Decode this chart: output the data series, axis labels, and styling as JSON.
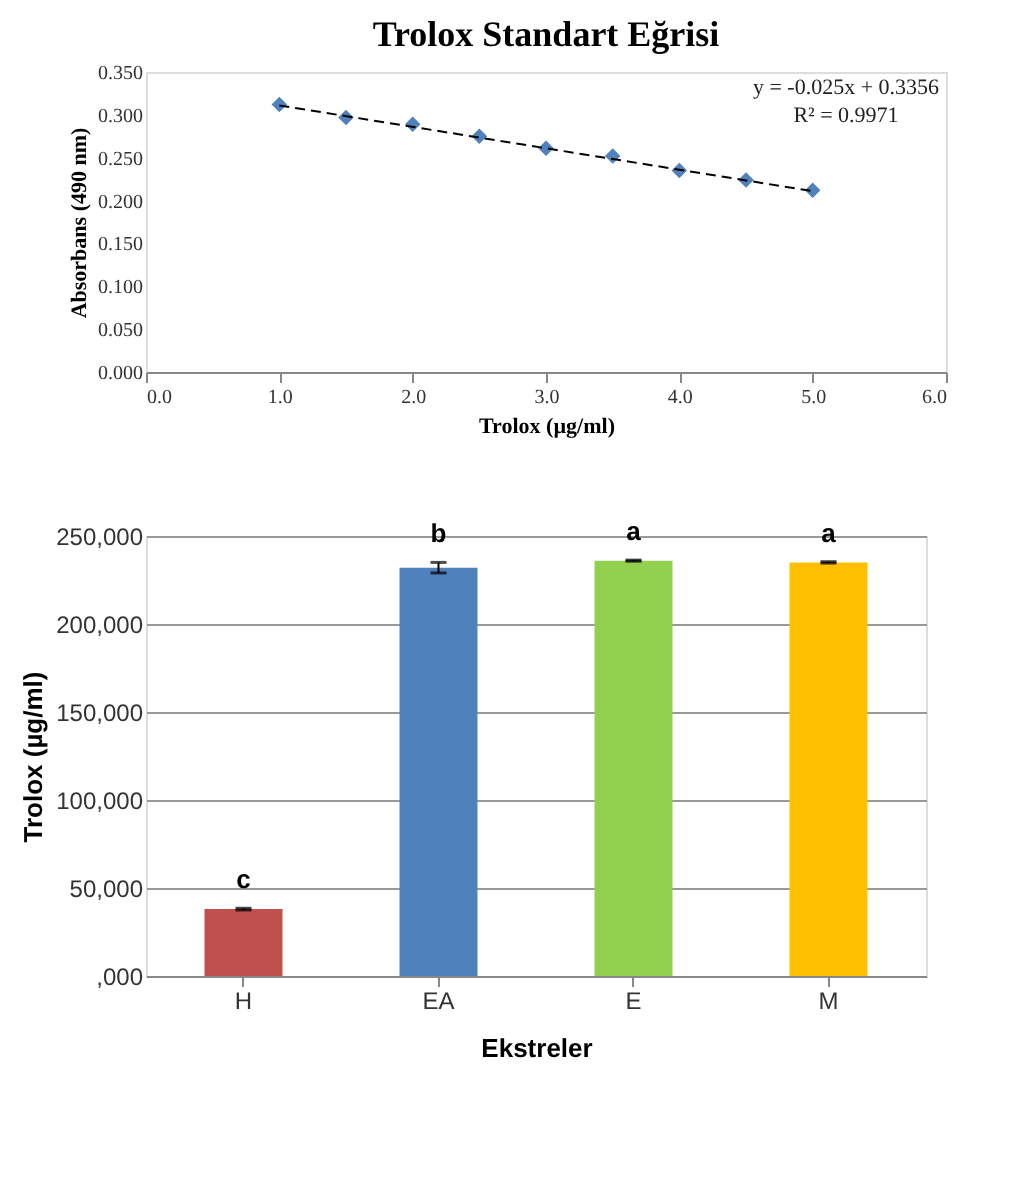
{
  "chart_data": [
    {
      "type": "scatter",
      "title": "Trolox Standart Eğrisi",
      "xlabel": "Trolox (µg/ml)",
      "ylabel": "Absorbans (490 nm)",
      "xlim": [
        0,
        6
      ],
      "xticks": [
        {
          "value": 0,
          "label": "0.0"
        },
        {
          "value": 1,
          "label": "1.0"
        },
        {
          "value": 2,
          "label": "2.0"
        },
        {
          "value": 3,
          "label": "3.0"
        },
        {
          "value": 4,
          "label": "4.0"
        },
        {
          "value": 5,
          "label": "5.0"
        },
        {
          "value": 6,
          "label": "6.0"
        }
      ],
      "ylim": [
        0,
        0.35
      ],
      "yticks": [
        {
          "value": 0,
          "label": "0.000"
        },
        {
          "value": 0.05,
          "label": "0.050"
        },
        {
          "value": 0.1,
          "label": "0.100"
        },
        {
          "value": 0.15,
          "label": "0.150"
        },
        {
          "value": 0.2,
          "label": "0.200"
        },
        {
          "value": 0.25,
          "label": "0.250"
        },
        {
          "value": 0.3,
          "label": "0.300"
        },
        {
          "value": 0.35,
          "label": "0.350"
        }
      ],
      "grid": false,
      "annotations": [
        "y = -0.025x + 0.3356",
        "R² = 0.9971"
      ],
      "series": [
        {
          "type": "scatter",
          "marker": "diamond",
          "color": "#4f81bd",
          "x": [
            1,
            1.5,
            2,
            2.5,
            3,
            3.5,
            4,
            4.5,
            5
          ],
          "values": [
            0.312,
            0.297,
            0.289,
            0.275,
            0.261,
            0.252,
            0.235,
            0.224,
            0.212
          ]
        },
        {
          "type": "line",
          "line_style": "dashed",
          "color": "#000000",
          "x": [
            1,
            5
          ],
          "values": [
            0.311,
            0.211
          ]
        }
      ]
    },
    {
      "type": "bar",
      "xlabel": "Ekstreler",
      "ylabel": "Trolox (µg/ml)",
      "categories": [
        "H",
        "EA",
        "E",
        "M"
      ],
      "values": [
        38000,
        232000,
        236000,
        235000
      ],
      "errors": [
        500,
        3000,
        300,
        400
      ],
      "colors": [
        "#c0504d",
        "#4f81bd",
        "#92d050",
        "#ffc000"
      ],
      "ylim": [
        0,
        250000
      ],
      "yticks": [
        {
          "value": 0,
          "label": ",000"
        },
        {
          "value": 50000,
          "label": "50,000"
        },
        {
          "value": 100000,
          "label": "100,000"
        },
        {
          "value": 150000,
          "label": "150,000"
        },
        {
          "value": 200000,
          "label": "200,000"
        },
        {
          "value": 250000,
          "label": "250,000"
        }
      ],
      "grid": "y",
      "annotations": [
        "c",
        "b",
        "a",
        "a"
      ]
    }
  ]
}
